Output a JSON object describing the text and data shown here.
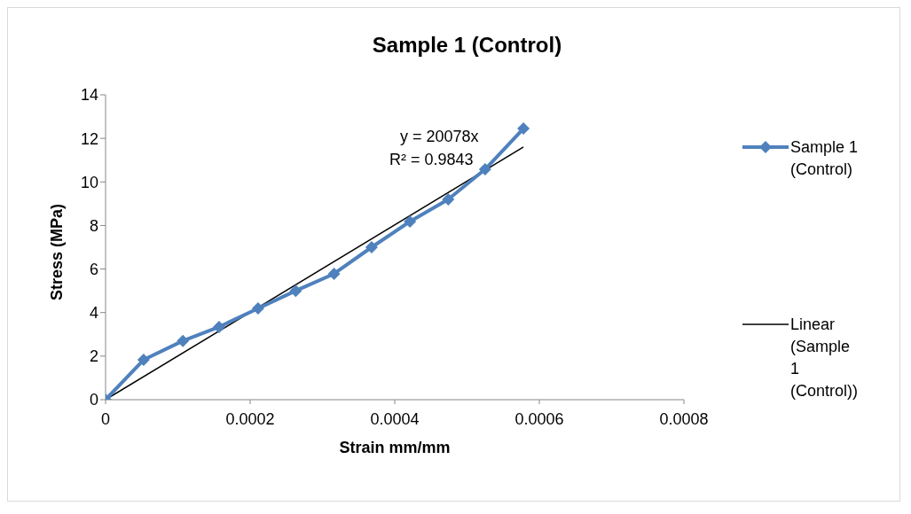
{
  "chart_data": {
    "type": "line",
    "title": "Sample 1 (Control)",
    "xlabel": "Strain mm/mm",
    "ylabel": "Stress (MPa)",
    "x": [
      0,
      5.26e-05,
      0.000107,
      0.000157,
      0.000211,
      0.000263,
      0.000316,
      0.000368,
      0.000421,
      0.000474,
      0.000525,
      0.000578
    ],
    "series": [
      {
        "name": "Sample 1 (Control)",
        "color": "#4f81bd",
        "values": [
          0,
          1.83,
          2.7,
          3.34,
          4.19,
          5.0,
          5.78,
          7.0,
          8.18,
          9.2,
          10.58,
          12.45
        ],
        "marker": "diamond"
      },
      {
        "name": "Linear (Sample 1 (Control))",
        "type": "line",
        "color": "#000000",
        "x": [
          0,
          0.000578
        ],
        "values": [
          0,
          11.6
        ],
        "marker": "none"
      }
    ],
    "annotations": [
      "y = 20078x",
      "R² = 0.9843"
    ],
    "xlim": [
      0,
      0.0008
    ],
    "xticks": [
      0,
      0.0002,
      0.0004,
      0.0006,
      0.0008
    ],
    "ylim": [
      0,
      14
    ],
    "yticks": [
      0,
      2,
      4,
      6,
      8,
      10,
      12,
      14
    ],
    "grid": false,
    "legend": "right"
  }
}
